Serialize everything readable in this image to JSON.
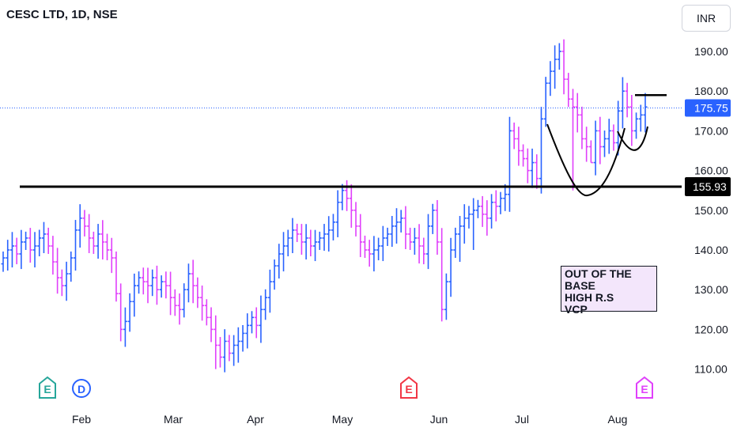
{
  "header": {
    "title": "CESC LTD, 1D, NSE",
    "currency_label": "INR"
  },
  "colors": {
    "up": "#2962ff",
    "down": "#e040fb",
    "line": "#000000",
    "price_tag": "#2962ff"
  },
  "annotation": {
    "lines": [
      "OUT OF THE BASE",
      "HIGH R.S",
      "VCP"
    ]
  },
  "events": [
    {
      "label": "E",
      "color": "#26a69a",
      "shape": "pentagon"
    },
    {
      "label": "D",
      "color": "#2962ff",
      "shape": "circle"
    },
    {
      "label": "E",
      "color": "#f23645",
      "shape": "pentagon"
    },
    {
      "label": "E",
      "color": "#e040fb",
      "shape": "pentagon"
    }
  ],
  "chart_data": {
    "type": "ohlc",
    "title": "CESC LTD, 1D, NSE",
    "ylim": [
      102,
      196
    ],
    "y_ticks": [
      190,
      180,
      170,
      160,
      150,
      140,
      130,
      120,
      110
    ],
    "y_tick_labels": [
      "190.00",
      "180.00",
      "170.00",
      "160.00",
      "150.00",
      "140.00",
      "130.00",
      "120.00",
      "110.00"
    ],
    "x_tick_labels": [
      "Feb",
      "Mar",
      "Apr",
      "May",
      "Jun",
      "Jul",
      "Aug"
    ],
    "last_price": 175.75,
    "last_price_label": "175.75",
    "support_level": 155.93,
    "support_label": "155.93",
    "resistance_level": 179,
    "closes": [
      138,
      140,
      141,
      139,
      142,
      143,
      140,
      141,
      143,
      144,
      141,
      137,
      133,
      131,
      134,
      138,
      145,
      148,
      146,
      143,
      141,
      144,
      142,
      140,
      138,
      129,
      120,
      122,
      127,
      131,
      133,
      132,
      131,
      133,
      130,
      132,
      131,
      128,
      126,
      125,
      130,
      134,
      131,
      128,
      126,
      123,
      120,
      116,
      113,
      117,
      114,
      116,
      117,
      119,
      121,
      123,
      121,
      125,
      128,
      132,
      136,
      139,
      141,
      143,
      145,
      144,
      142,
      143,
      141,
      142,
      143,
      144,
      145,
      147,
      152,
      155,
      153,
      150,
      146,
      142,
      140,
      139,
      140,
      141,
      143,
      144,
      146,
      147,
      148,
      144,
      142,
      143,
      141,
      139,
      146,
      150,
      142,
      125,
      132,
      140,
      144,
      146,
      148,
      149,
      150,
      151,
      149,
      148,
      152,
      151,
      153,
      154,
      170,
      168,
      165,
      163,
      160,
      162,
      158,
      173,
      182,
      185,
      188,
      190,
      183,
      178,
      176,
      174,
      168,
      166,
      162,
      170,
      166,
      168,
      170,
      167,
      175,
      180,
      176,
      170,
      173,
      174,
      176
    ]
  }
}
